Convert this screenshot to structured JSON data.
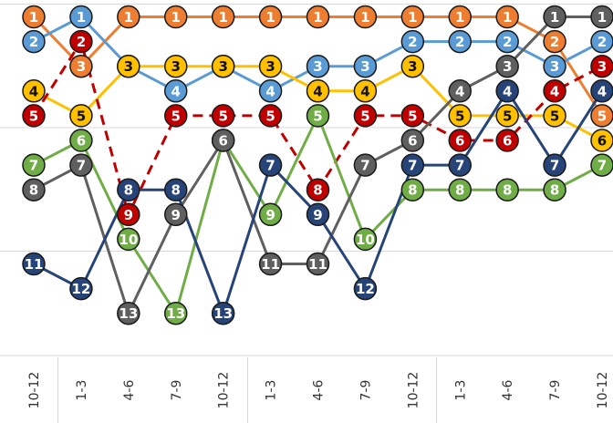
{
  "chart_data": {
    "type": "line",
    "title": "",
    "xlabel": "",
    "ylabel": "",
    "y_inverted": true,
    "grid": "horizontal",
    "categories": [
      "10-12",
      "1-3",
      "4-6",
      "7-9",
      "10-12",
      "1-3",
      "4-6",
      "7-9",
      "10-12",
      "1-3",
      "4-6",
      "7-9",
      "10-12"
    ],
    "series": [
      {
        "color": "#ed7d31",
        "dashed": false,
        "label_color": "#ffffff",
        "values": [
          1,
          3,
          1,
          1,
          1,
          1,
          1,
          1,
          1,
          1,
          1,
          2,
          5
        ]
      },
      {
        "color": "#5b9bd5",
        "dashed": false,
        "label_color": "#ffffff",
        "values": [
          2,
          1,
          3,
          4,
          3,
          4,
          3,
          3,
          2,
          2,
          2,
          3,
          2
        ]
      },
      {
        "color": "#ffc000",
        "dashed": false,
        "label_color": "#111111",
        "values": [
          4,
          5,
          3,
          3,
          3,
          3,
          4,
          4,
          3,
          5,
          5,
          5,
          6
        ]
      },
      {
        "color": "#c00000",
        "dashed": true,
        "label_color": "#ffffff",
        "values": [
          5,
          2,
          9,
          5,
          5,
          5,
          8,
          5,
          5,
          6,
          6,
          4,
          3
        ]
      },
      {
        "color": "#70ad47",
        "dashed": false,
        "label_color": "#ffffff",
        "values": [
          7,
          6,
          10,
          13,
          6,
          9,
          5,
          10,
          8,
          8,
          8,
          8,
          7
        ]
      },
      {
        "color": "#5f5f5f",
        "dashed": false,
        "label_color": "#ffffff",
        "values": [
          8,
          7,
          13,
          9,
          6,
          11,
          11,
          7,
          6,
          4,
          3,
          1,
          1
        ]
      },
      {
        "color": "#264478",
        "dashed": false,
        "label_color": "#ffffff",
        "values": [
          11,
          12,
          8,
          8,
          13,
          7,
          9,
          12,
          7,
          7,
          4,
          7,
          4
        ]
      }
    ]
  }
}
